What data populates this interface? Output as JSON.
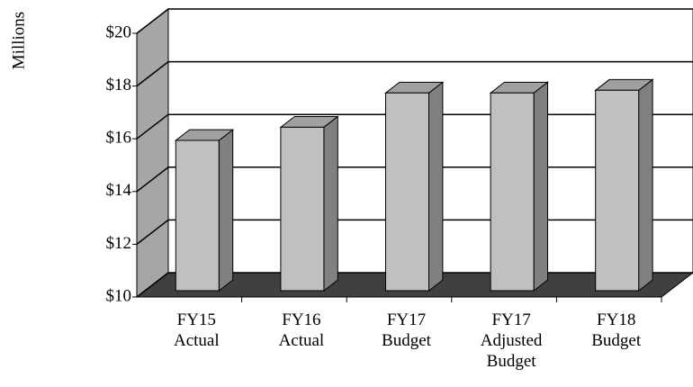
{
  "chart_data": {
    "type": "bar3d",
    "y_label": "Millions",
    "categories": [
      "FY15 Actual",
      "FY16 Actual",
      "FY17 Budget",
      "FY17 Adjusted Budget",
      "FY18 Budget"
    ],
    "values": [
      15.7,
      16.2,
      17.5,
      17.5,
      17.6
    ],
    "color": "#c0c0c0",
    "ylim": [
      10,
      20
    ],
    "yticks": [
      {
        "value": 10,
        "label": "$10"
      },
      {
        "value": 12,
        "label": "$12"
      },
      {
        "value": 14,
        "label": "$14"
      },
      {
        "value": 16,
        "label": "$16"
      },
      {
        "value": 18,
        "label": "$18"
      },
      {
        "value": 20,
        "label": "$20"
      }
    ],
    "grid": true
  }
}
